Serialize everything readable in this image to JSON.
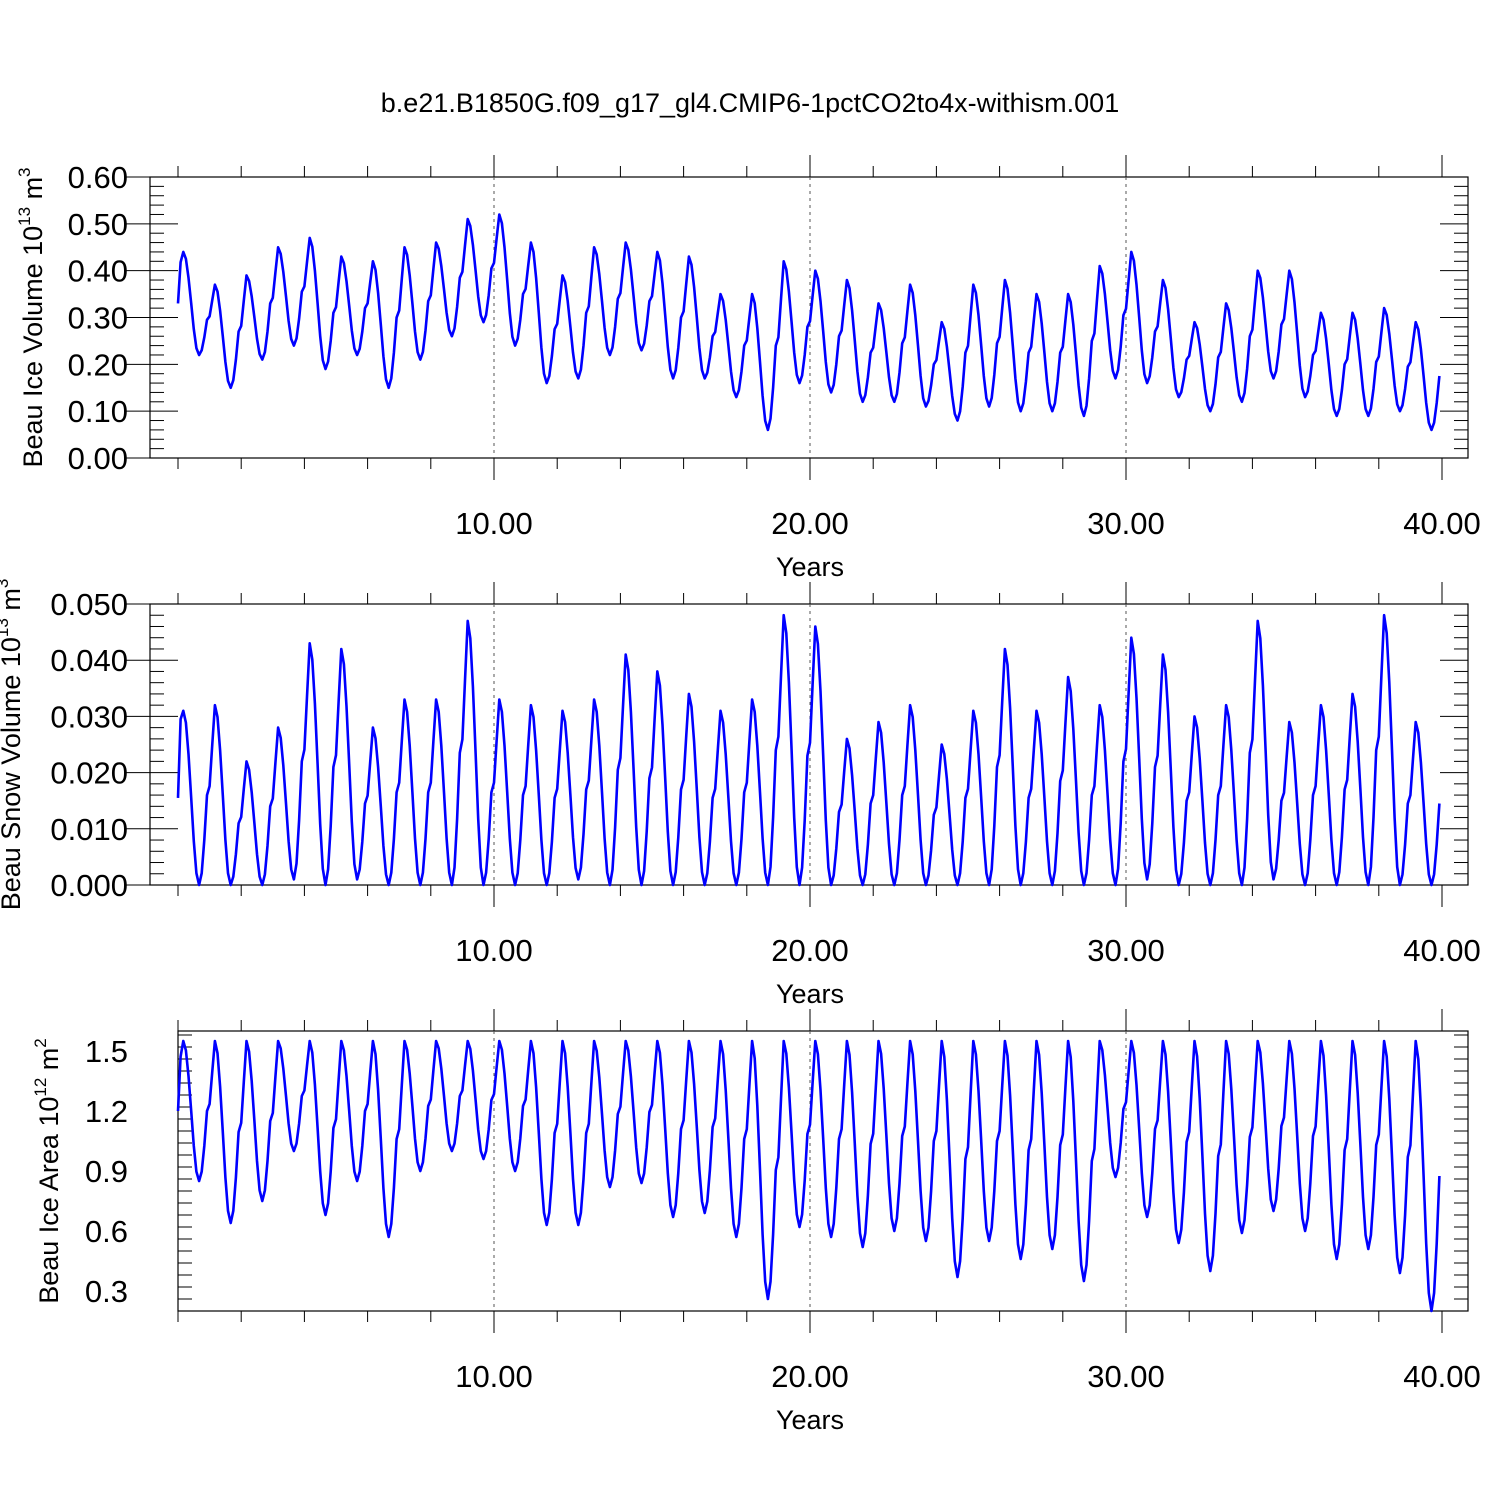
{
  "chart_title": "b.e21.B1850G.f09_g17_gl4.CMIP6-1pctCO2to4x-withism.001",
  "colors": {
    "series": "#0000ff",
    "axis": "#000000",
    "grid": "#555555"
  },
  "chart_data": [
    {
      "type": "line",
      "xlabel": "Years",
      "ylabel": {
        "main": "Beau Ice Volume 10",
        "exp": "13",
        "unit": " m",
        "unit_exp": "3"
      },
      "xlim": [
        0.0,
        40.0
      ],
      "ylim": [
        0.0,
        0.6
      ],
      "xticks": [
        "10.00",
        "20.00",
        "30.00",
        "40.00"
      ],
      "yticks": [
        "0.00",
        "0.10",
        "0.20",
        "0.30",
        "0.40",
        "0.50",
        "0.60"
      ],
      "grid": "dashed vertical lines at 10, 20, 30",
      "annual_max": [
        0.44,
        0.37,
        0.39,
        0.45,
        0.47,
        0.43,
        0.42,
        0.45,
        0.46,
        0.51,
        0.52,
        0.46,
        0.39,
        0.45,
        0.46,
        0.44,
        0.43,
        0.35,
        0.35,
        0.42,
        0.4,
        0.38,
        0.33,
        0.37,
        0.29,
        0.37,
        0.38,
        0.35,
        0.35,
        0.41,
        0.44,
        0.38,
        0.29,
        0.33,
        0.4,
        0.4,
        0.31,
        0.31,
        0.32,
        0.29
      ],
      "annual_min": [
        0.22,
        0.15,
        0.21,
        0.24,
        0.19,
        0.22,
        0.15,
        0.21,
        0.26,
        0.29,
        0.24,
        0.16,
        0.17,
        0.22,
        0.23,
        0.17,
        0.17,
        0.13,
        0.06,
        0.16,
        0.14,
        0.12,
        0.12,
        0.11,
        0.08,
        0.11,
        0.1,
        0.1,
        0.09,
        0.17,
        0.16,
        0.13,
        0.1,
        0.12,
        0.17,
        0.13,
        0.09,
        0.09,
        0.1,
        0.06
      ],
      "series": [
        {
          "values": []
        }
      ]
    },
    {
      "type": "line",
      "xlabel": "Years",
      "ylabel": {
        "main": "Beau Snow Volume 10",
        "exp": "13",
        "unit": " m",
        "unit_exp": "3"
      },
      "xlim": [
        0.0,
        40.0
      ],
      "ylim": [
        0.0,
        0.05
      ],
      "xticks": [
        "10.00",
        "20.00",
        "30.00",
        "40.00"
      ],
      "yticks": [
        "0.000",
        "0.010",
        "0.020",
        "0.030",
        "0.040",
        "0.050"
      ],
      "grid": "dashed vertical lines at 10, 20, 30",
      "annual_max": [
        0.031,
        0.032,
        0.022,
        0.028,
        0.043,
        0.042,
        0.028,
        0.033,
        0.033,
        0.047,
        0.033,
        0.032,
        0.031,
        0.033,
        0.041,
        0.038,
        0.034,
        0.031,
        0.033,
        0.048,
        0.046,
        0.026,
        0.029,
        0.032,
        0.025,
        0.031,
        0.042,
        0.031,
        0.037,
        0.032,
        0.044,
        0.041,
        0.03,
        0.032,
        0.047,
        0.029,
        0.032,
        0.034,
        0.048,
        0.029
      ],
      "annual_min": [
        0.0,
        0.0,
        0.0,
        0.001,
        0.0,
        0.001,
        0.0,
        0.0,
        0.0,
        0.0,
        0.0,
        0.0,
        0.001,
        0.0,
        0.0,
        0.0,
        0.0,
        0.0,
        0.0,
        0.0,
        0.0,
        0.0,
        0.0,
        0.0,
        0.0,
        0.0,
        0.0,
        0.0,
        0.0,
        0.0,
        0.001,
        0.0,
        0.0,
        0.0,
        0.001,
        0.0,
        0.0,
        0.0,
        0.0,
        0.0
      ],
      "series": [
        {
          "values": []
        }
      ]
    },
    {
      "type": "line",
      "xlabel": "Years",
      "ylabel": {
        "main": "Beau Ice Area 10",
        "exp": "12",
        "unit": " m",
        "unit_exp": "2"
      },
      "xlim": [
        0.0,
        40.0
      ],
      "ylim": [
        0.2,
        1.6
      ],
      "xticks": [
        "10.00",
        "20.00",
        "30.00",
        "40.00"
      ],
      "yticks": [
        "0.3",
        "0.6",
        "0.9",
        "1.2",
        "1.5"
      ],
      "grid": "dashed vertical lines at 10, 20, 30",
      "annual_max": [
        1.55,
        1.55,
        1.55,
        1.55,
        1.55,
        1.55,
        1.55,
        1.55,
        1.55,
        1.55,
        1.55,
        1.55,
        1.55,
        1.55,
        1.55,
        1.55,
        1.55,
        1.55,
        1.55,
        1.55,
        1.55,
        1.55,
        1.55,
        1.55,
        1.55,
        1.55,
        1.55,
        1.55,
        1.55,
        1.55,
        1.55,
        1.55,
        1.55,
        1.55,
        1.55,
        1.55,
        1.55,
        1.55,
        1.55,
        1.55
      ],
      "annual_min": [
        0.85,
        0.64,
        0.75,
        1.0,
        0.68,
        0.85,
        0.57,
        0.9,
        1.0,
        0.96,
        0.9,
        0.63,
        0.63,
        0.82,
        0.84,
        0.67,
        0.69,
        0.57,
        0.26,
        0.62,
        0.57,
        0.52,
        0.6,
        0.55,
        0.37,
        0.55,
        0.46,
        0.51,
        0.35,
        0.87,
        0.67,
        0.54,
        0.4,
        0.59,
        0.7,
        0.6,
        0.46,
        0.51,
        0.39,
        0.2
      ],
      "series": [
        {
          "values": []
        }
      ]
    }
  ]
}
